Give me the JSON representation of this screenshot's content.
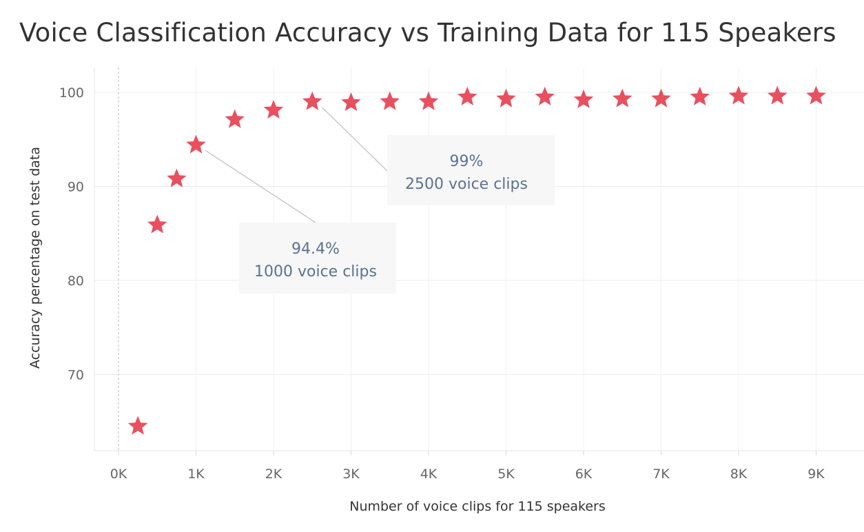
{
  "chart_data": {
    "type": "scatter",
    "title": "Voice Classification Accuracy vs Training Data for 115 Speakers",
    "xlabel": "Number of voice clips for 115 speakers",
    "ylabel": "Accuracy percentage on test data",
    "xlim": [
      -300,
      9300
    ],
    "ylim": [
      62,
      102
    ],
    "x_ticks": [
      0,
      1000,
      2000,
      3000,
      4000,
      5000,
      6000,
      7000,
      8000,
      9000
    ],
    "x_tick_labels": [
      "0K",
      "1K",
      "2K",
      "3K",
      "4K",
      "5K",
      "6K",
      "7K",
      "8K",
      "9K"
    ],
    "y_ticks": [
      70,
      80,
      90,
      100
    ],
    "y_tick_labels": [
      "70",
      "80",
      "90",
      "100"
    ],
    "grid": true,
    "marker": "star",
    "marker_color": "#e8505f",
    "points": [
      {
        "x": 250,
        "y": 64.5
      },
      {
        "x": 500,
        "y": 85.9
      },
      {
        "x": 750,
        "y": 90.8
      },
      {
        "x": 1000,
        "y": 94.4
      },
      {
        "x": 1500,
        "y": 97.1
      },
      {
        "x": 2000,
        "y": 98.1
      },
      {
        "x": 2500,
        "y": 99.0
      },
      {
        "x": 3000,
        "y": 98.9
      },
      {
        "x": 3500,
        "y": 99.0
      },
      {
        "x": 4000,
        "y": 99.0
      },
      {
        "x": 4500,
        "y": 99.5
      },
      {
        "x": 5000,
        "y": 99.3
      },
      {
        "x": 5500,
        "y": 99.5
      },
      {
        "x": 6000,
        "y": 99.2
      },
      {
        "x": 6500,
        "y": 99.3
      },
      {
        "x": 7000,
        "y": 99.3
      },
      {
        "x": 7500,
        "y": 99.5
      },
      {
        "x": 8000,
        "y": 99.6
      },
      {
        "x": 8500,
        "y": 99.6
      },
      {
        "x": 9000,
        "y": 99.6
      }
    ],
    "annotations": [
      {
        "x": 1000,
        "y": 94.4,
        "line1": "94.4%",
        "line2": "1000 voice clips"
      },
      {
        "x": 2500,
        "y": 99.0,
        "line1": "99%",
        "line2": "2500 voice clips"
      }
    ]
  }
}
